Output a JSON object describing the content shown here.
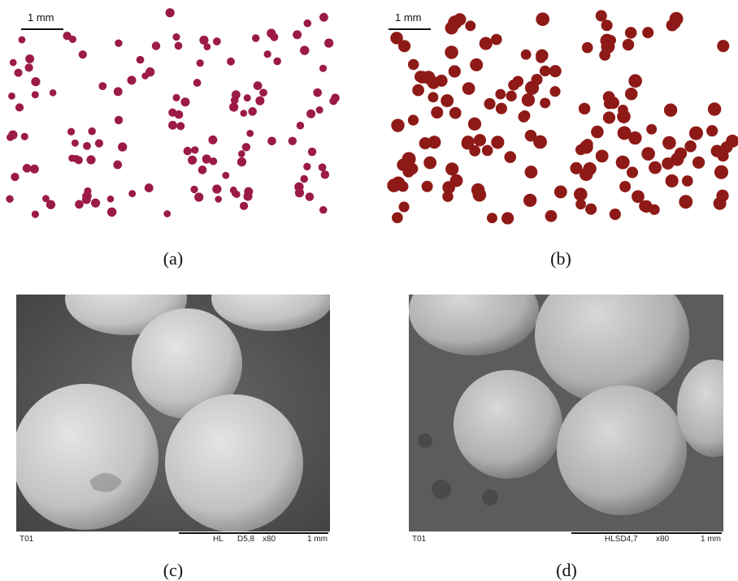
{
  "panels": [
    {
      "label": "(a)",
      "scale_bar": "1 mm"
    },
    {
      "label": "(b)",
      "scale_bar": "1 mm"
    },
    {
      "label": "(c)",
      "footer": {
        "sample": "T01",
        "mode": "HL",
        "detector": "D5,8",
        "magnification": "x80",
        "scale": "1 mm"
      }
    },
    {
      "label": "(d)",
      "footer": {
        "sample": "T01",
        "mode": "HLSD4,7",
        "magnification": "x80",
        "scale": "1 mm"
      }
    }
  ]
}
